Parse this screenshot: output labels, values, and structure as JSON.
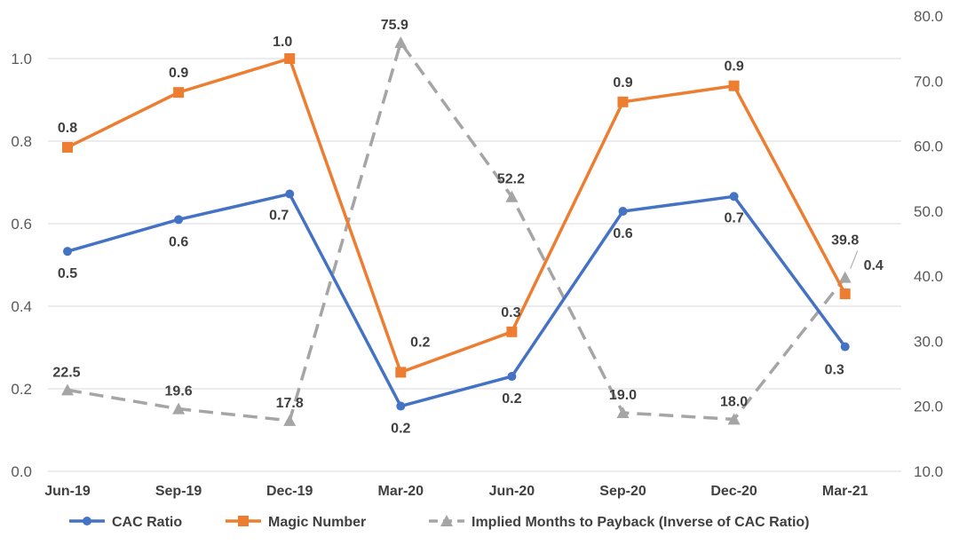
{
  "chart_data": {
    "type": "line",
    "categories": [
      "Jun-19",
      "Sep-19",
      "Dec-19",
      "Mar-20",
      "Jun-20",
      "Sep-20",
      "Dec-20",
      "Mar-21"
    ],
    "ylim": [
      0,
      1.0
    ],
    "yticks": [
      "0.0",
      "0.2",
      "0.4",
      "0.6",
      "0.8",
      "1.0"
    ],
    "y2lim": [
      10,
      80
    ],
    "y2ticks": [
      "10.0",
      "20.0",
      "30.0",
      "40.0",
      "50.0",
      "60.0",
      "70.0",
      "80.0"
    ],
    "grid": true,
    "legend_position": "bottom",
    "series": [
      {
        "name": "CAC Ratio",
        "axis": "left",
        "color": "#4472c4",
        "marker": "circle",
        "dash": "solid",
        "values": [
          0.533,
          0.61,
          0.672,
          0.158,
          0.23,
          0.63,
          0.666,
          0.302
        ],
        "labels": [
          "0.5",
          "0.6",
          "0.7",
          "0.2",
          "0.2",
          "0.6",
          "0.7",
          "0.3"
        ]
      },
      {
        "name": "Magic Number",
        "axis": "left",
        "color": "#ed7d31",
        "marker": "square",
        "dash": "solid",
        "values": [
          0.785,
          0.918,
          1.0,
          0.24,
          0.338,
          0.895,
          0.934,
          0.43
        ],
        "labels": [
          "0.8",
          "0.9",
          "1.0",
          "0.2",
          "0.3",
          "0.9",
          "0.9",
          "0.4"
        ]
      },
      {
        "name": "Implied Months to Payback (Inverse of CAC Ratio)",
        "axis": "right",
        "color": "#a5a5a5",
        "marker": "triangle",
        "dash": "dashed",
        "values": [
          22.5,
          19.6,
          17.8,
          75.9,
          52.2,
          19.0,
          18.0,
          39.8
        ],
        "labels": [
          "22.5",
          "19.6",
          "17.8",
          "75.9",
          "52.2",
          "19.0",
          "18.0",
          "39.8"
        ]
      }
    ]
  }
}
